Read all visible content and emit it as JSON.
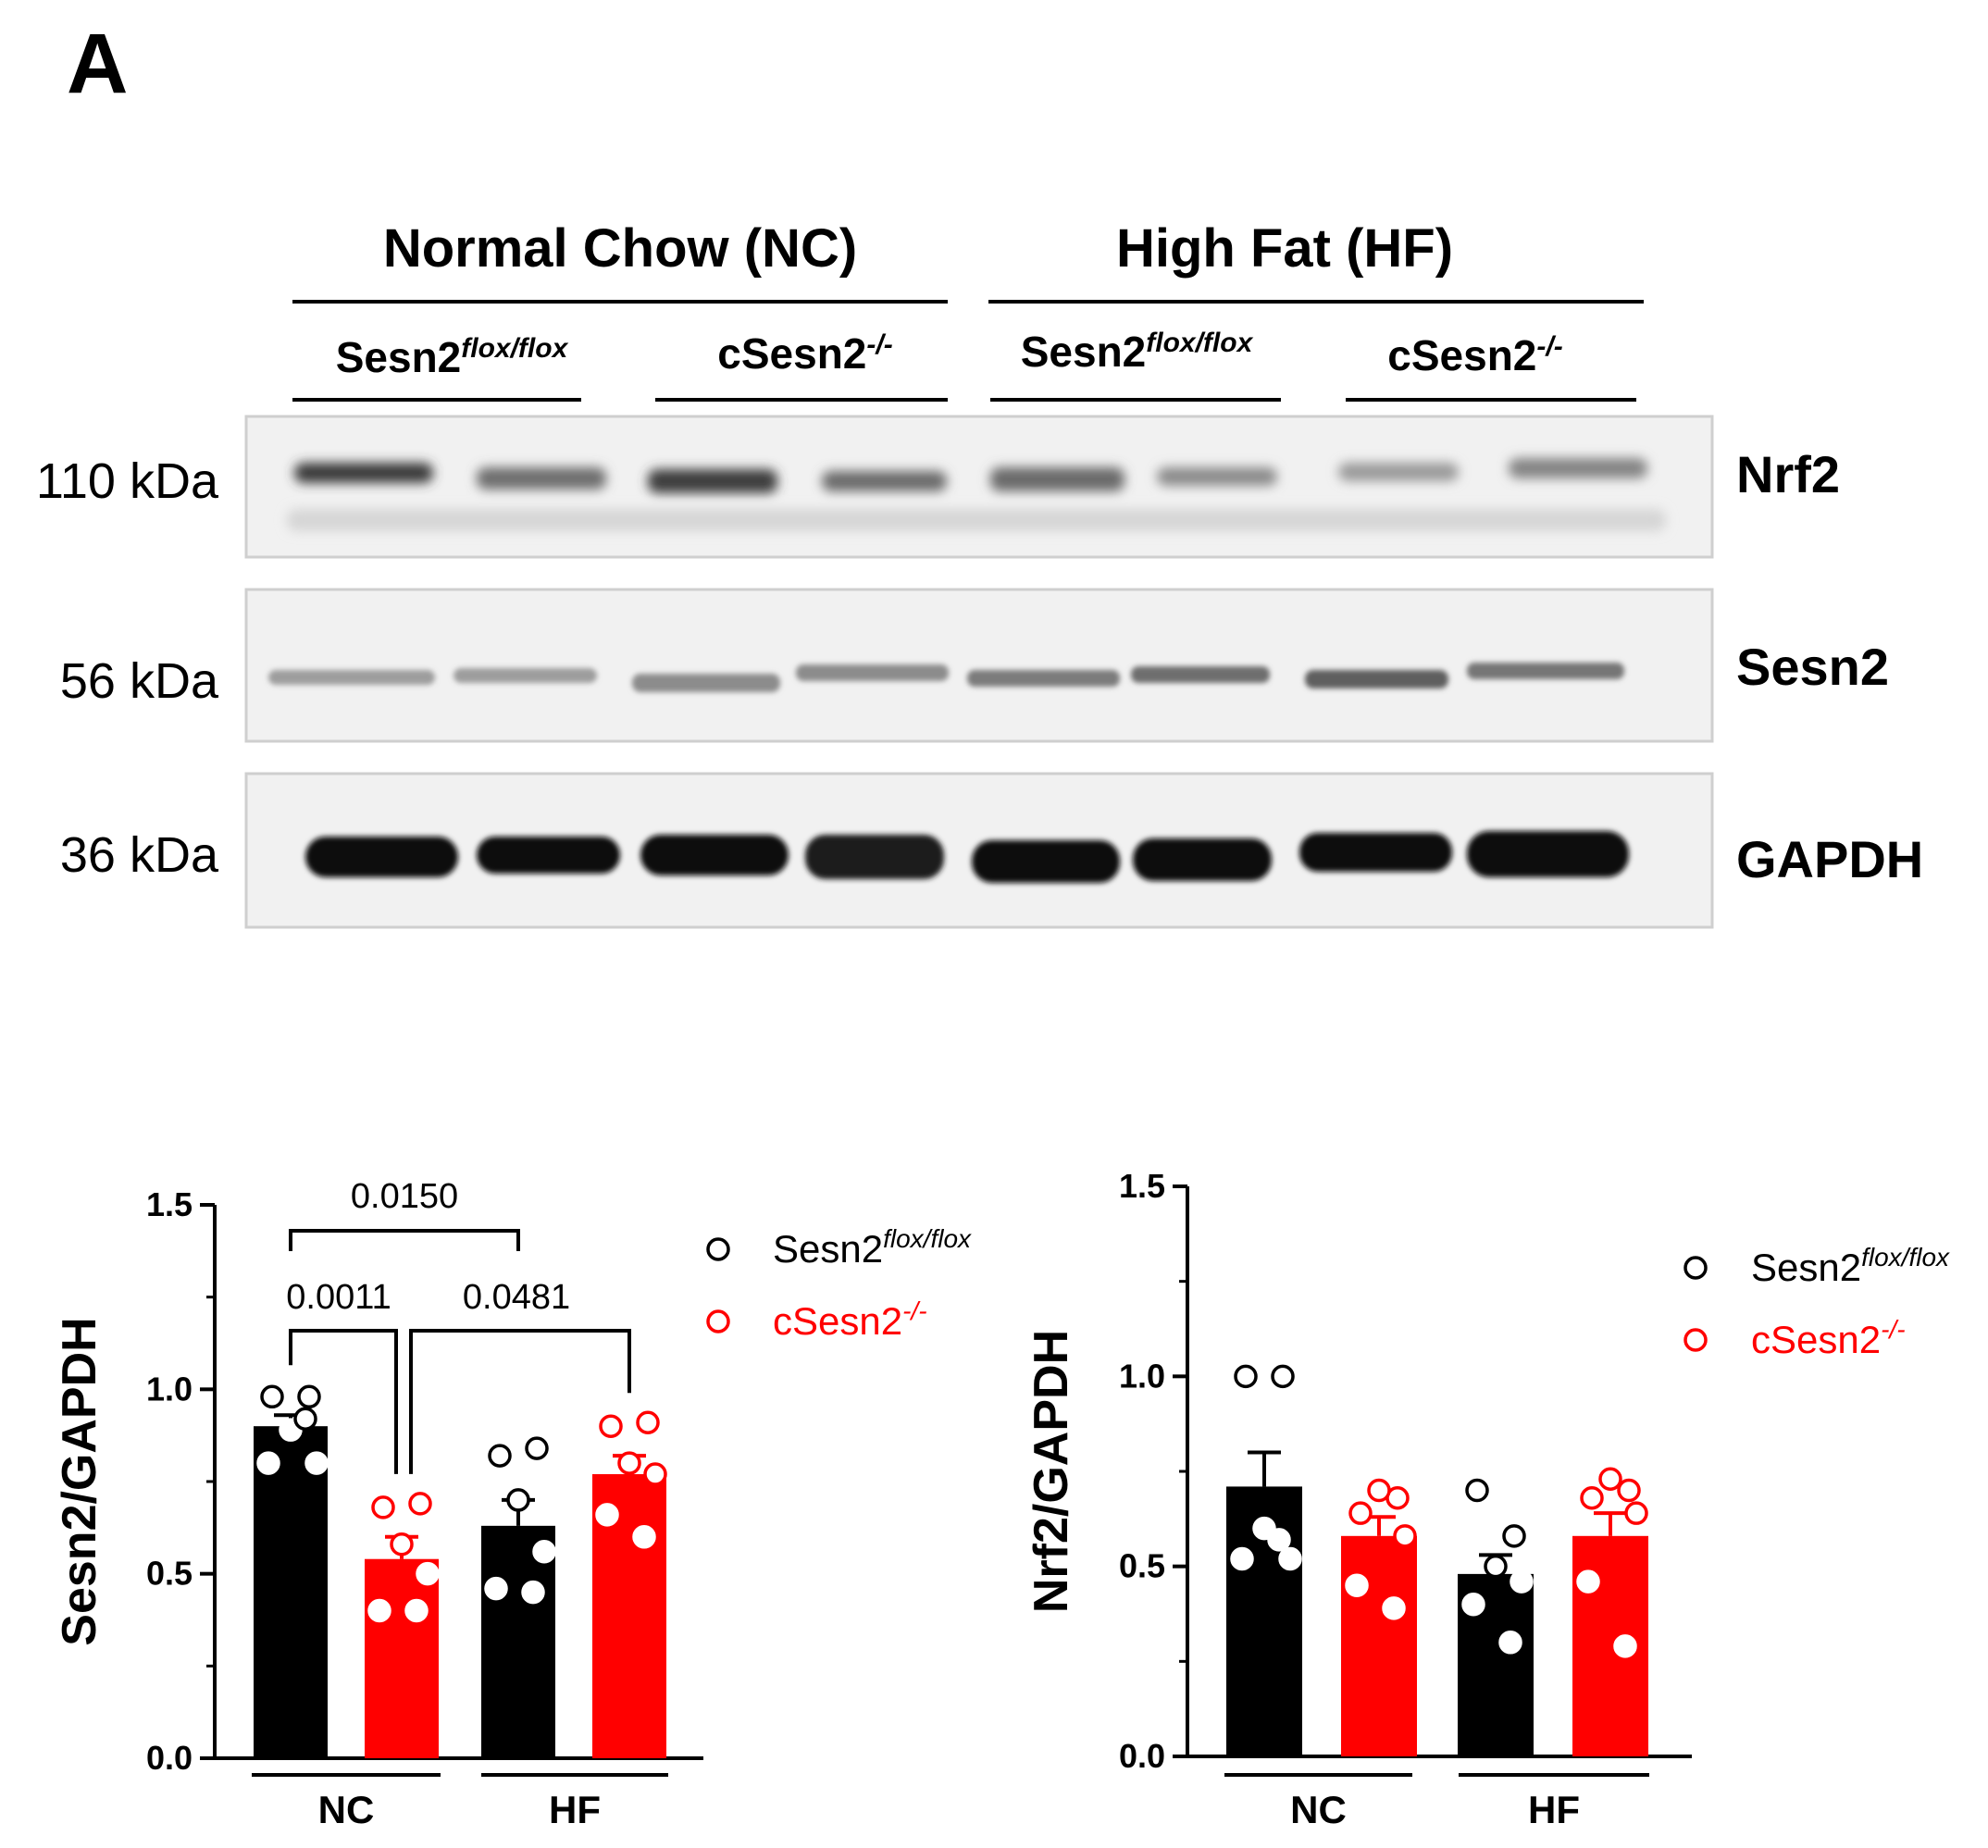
{
  "figure": {
    "panel_label": "A",
    "blot": {
      "group_headers": [
        "Normal Chow (NC)",
        "High Fat (HF)"
      ],
      "genotype_labels": [
        {
          "base": "Sesn2",
          "sup": "flox/flox"
        },
        {
          "base": "cSesn2",
          "sup": "-/-"
        },
        {
          "base": "Sesn2",
          "sup": "flox/flox"
        },
        {
          "base": "cSesn2",
          "sup": "-/-"
        }
      ],
      "rows": [
        {
          "size": "110 kDa",
          "protein": "Nrf2"
        },
        {
          "size": "56 kDa",
          "protein": "Sesn2"
        },
        {
          "size": "36 kDa",
          "protein": "GAPDH"
        }
      ]
    }
  },
  "colors": {
    "black": "#000000",
    "red": "#ff0000",
    "membrane": "#f2f2f2",
    "membrane_border": "#cfcfcf"
  },
  "chart_data": [
    {
      "type": "bar",
      "ylabel": "Sesn2/GAPDH",
      "ylim": [
        0,
        1.5
      ],
      "yticks": [
        "0.0",
        "0.5",
        "1.0",
        "1.5"
      ],
      "groups": [
        "NC",
        "HF"
      ],
      "legend": {
        "position": "top-right"
      },
      "series": [
        {
          "name": "Sesn2",
          "name_sup": "flox/flox",
          "color": "#000000",
          "marker": "open-circle",
          "bars": [
            {
              "group": "NC",
              "mean": 0.9,
              "sem": 0.03,
              "points": [
                0.98,
                0.98,
                0.89,
                0.8,
                0.8,
                0.92
              ]
            },
            {
              "group": "HF",
              "mean": 0.63,
              "sem": 0.07,
              "points": [
                0.82,
                0.84,
                0.7,
                0.56,
                0.46,
                0.45
              ]
            }
          ]
        },
        {
          "name": "cSesn2",
          "name_sup": "-/-",
          "color": "#ff0000",
          "marker": "open-circle",
          "bars": [
            {
              "group": "NC",
              "mean": 0.54,
              "sem": 0.06,
              "points": [
                0.68,
                0.69,
                0.58,
                0.5,
                0.4,
                0.4
              ]
            },
            {
              "group": "HF",
              "mean": 0.77,
              "sem": 0.05,
              "points": [
                0.9,
                0.91,
                0.8,
                0.77,
                0.66,
                0.6
              ]
            }
          ]
        }
      ],
      "comparisons": [
        {
          "label": "0.0150",
          "from": "NC cSesn2 knockout",
          "to": "HF Sesn2 flox",
          "note": "bracket between bars"
        },
        {
          "label": "0.0011"
        },
        {
          "label": "0.0481"
        }
      ]
    },
    {
      "type": "bar",
      "ylabel": "Nrf2/GAPDH",
      "ylim": [
        0,
        1.5
      ],
      "yticks": [
        "0.0",
        "0.5",
        "1.0",
        "1.5"
      ],
      "groups": [
        "NC",
        "HF"
      ],
      "legend": {
        "position": "top-right"
      },
      "series": [
        {
          "name": "Sesn2",
          "name_sup": "flox/flox",
          "color": "#000000",
          "marker": "open-circle",
          "bars": [
            {
              "group": "NC",
              "mean": 0.71,
              "sem": 0.09,
              "points": [
                1.0,
                1.0,
                0.6,
                0.52,
                0.52,
                0.57
              ]
            },
            {
              "group": "HF",
              "mean": 0.48,
              "sem": 0.05,
              "points": [
                0.7,
                0.58,
                0.5,
                0.46,
                0.4,
                0.3
              ]
            }
          ]
        },
        {
          "name": "cSesn2",
          "name_sup": "-/-",
          "color": "#ff0000",
          "marker": "open-circle",
          "bars": [
            {
              "group": "NC",
              "mean": 0.58,
              "sem": 0.05,
              "points": [
                0.64,
                0.68,
                0.7,
                0.58,
                0.45,
                0.39
              ]
            },
            {
              "group": "HF",
              "mean": 0.58,
              "sem": 0.06,
              "points": [
                0.68,
                0.7,
                0.73,
                0.64,
                0.46,
                0.29
              ]
            }
          ]
        }
      ]
    }
  ]
}
